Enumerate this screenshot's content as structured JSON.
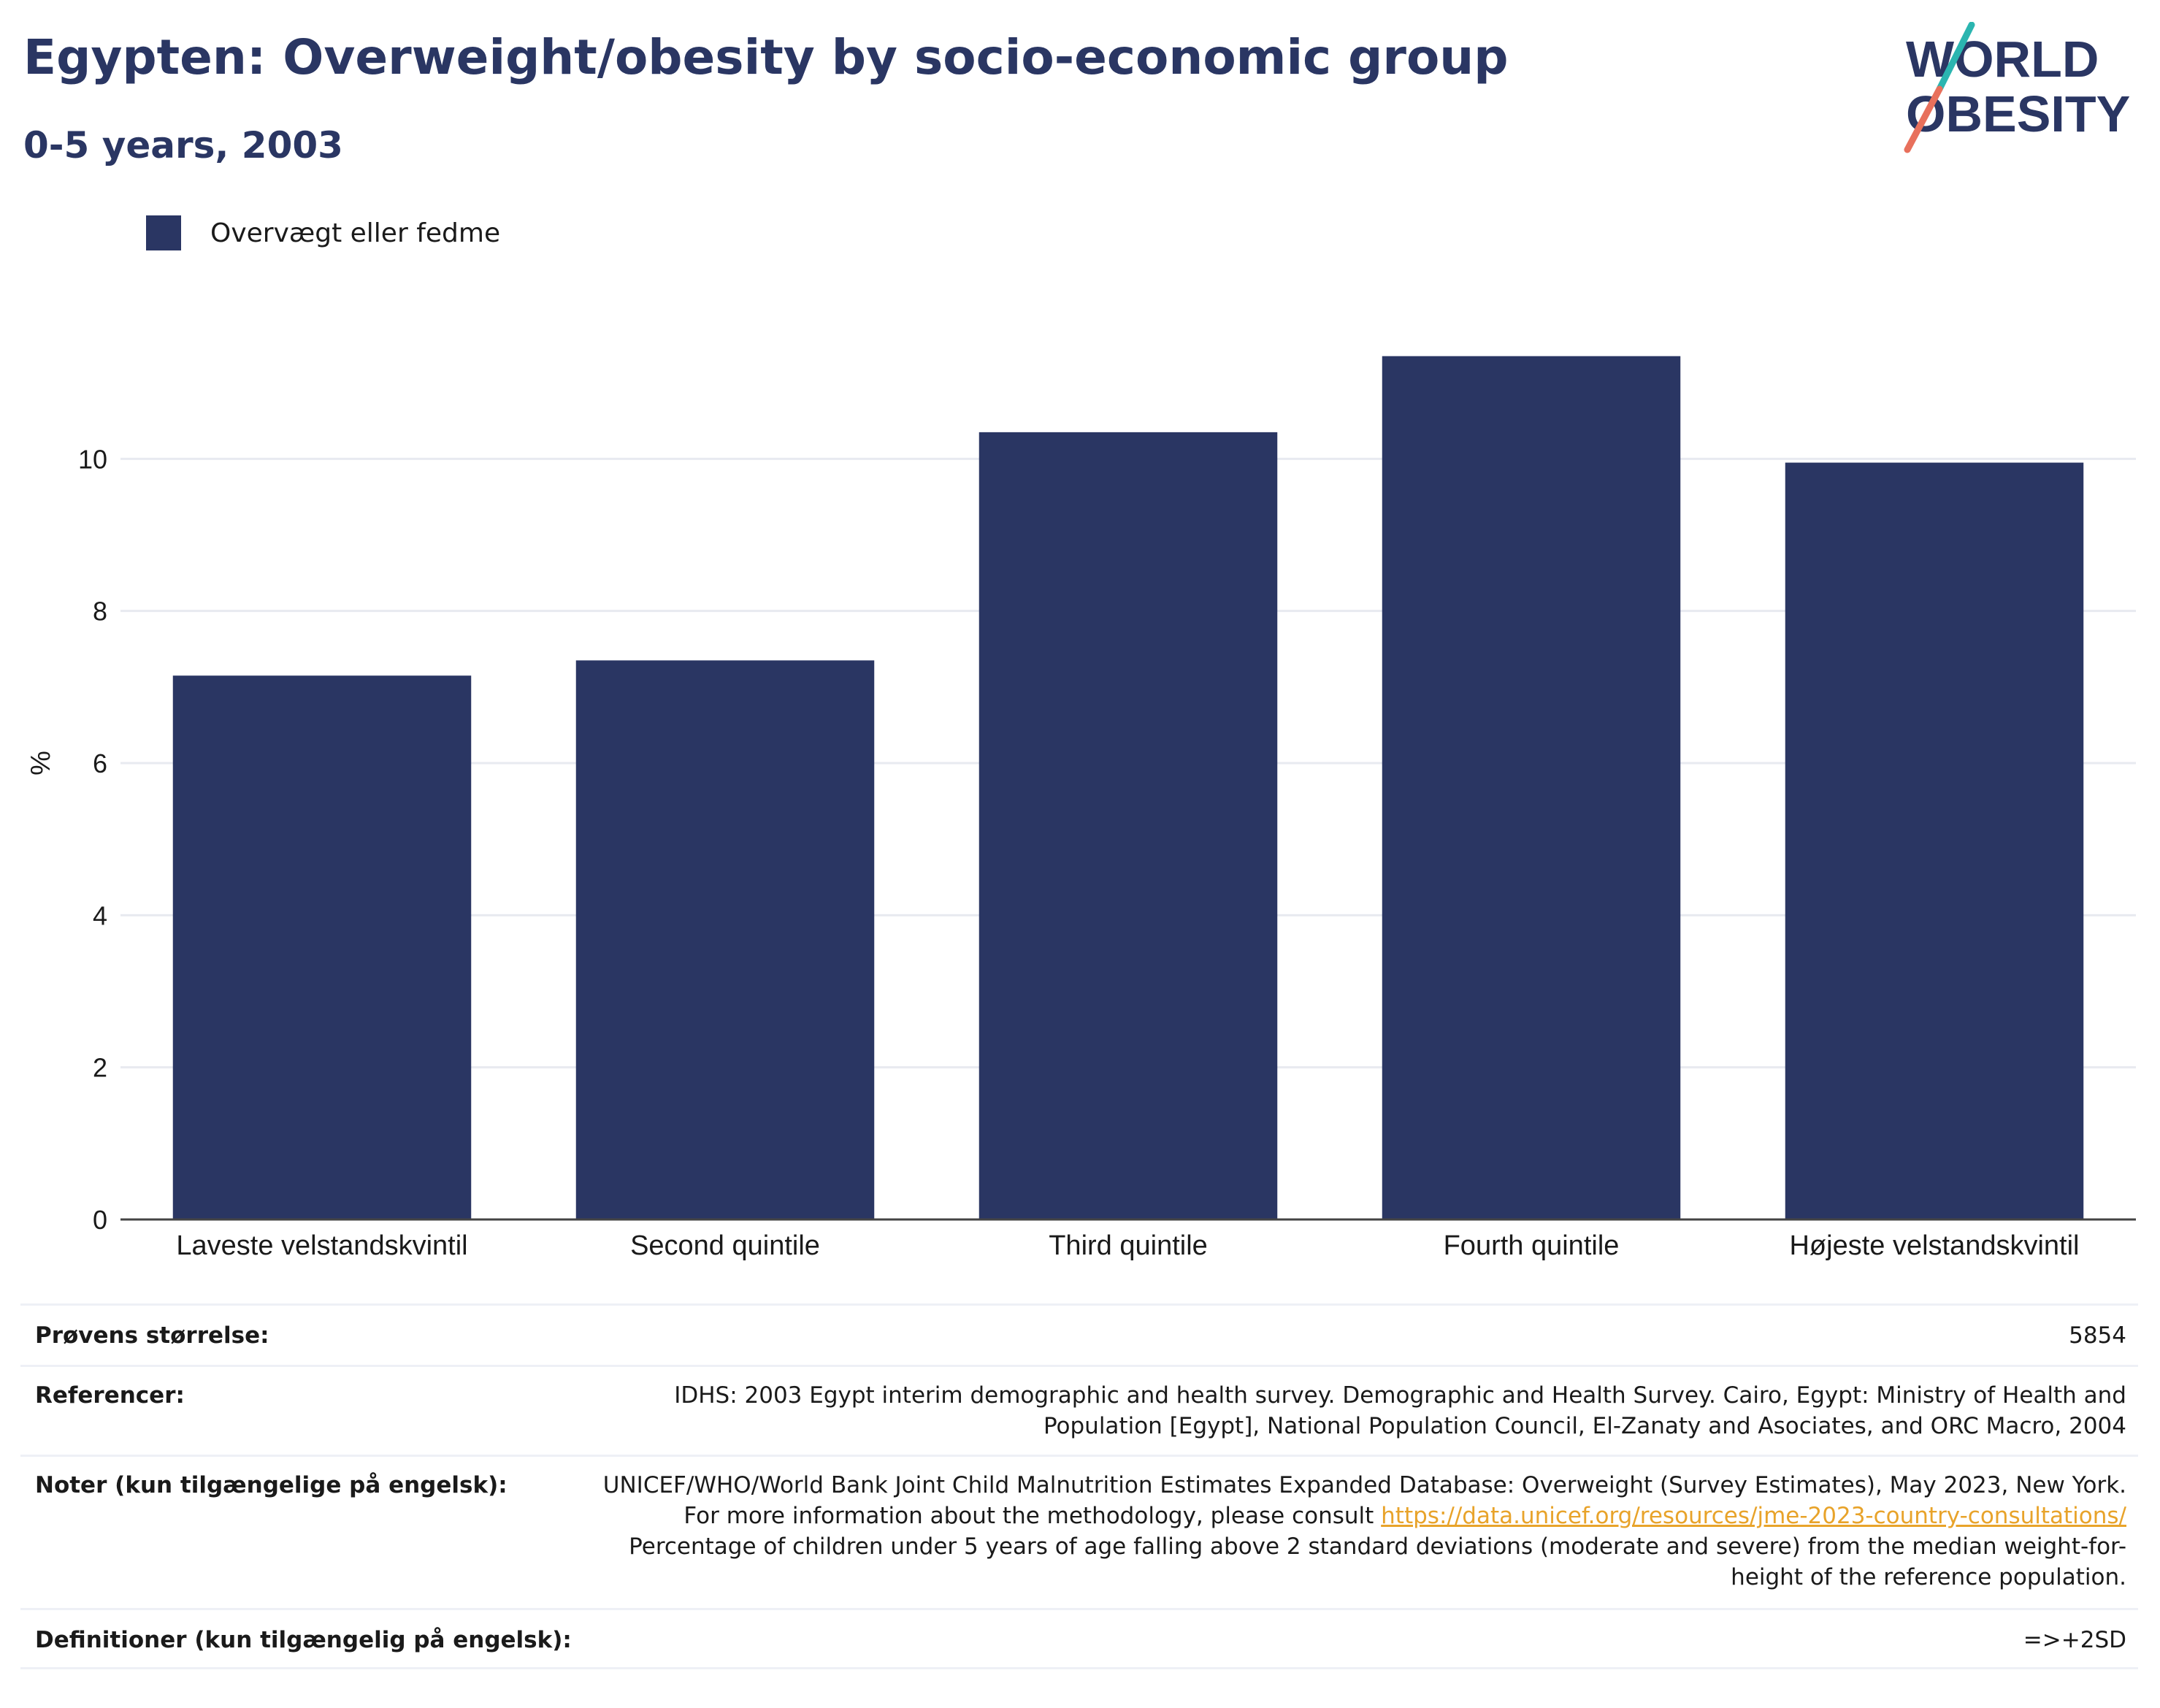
{
  "header": {
    "title": "Egypten: Overweight/obesity by socio-economic group",
    "subtitle": "0-5 years, 2003"
  },
  "logo": {
    "line1": "WORLD",
    "line2": "OBESITY",
    "colors": {
      "text": "#2a3663",
      "teal": "#2bb5b0",
      "coral": "#e8705c"
    }
  },
  "legend": {
    "label": "Overvægt eller fedme",
    "color": "#2a3663"
  },
  "chart_data": {
    "type": "bar",
    "categories": [
      "Laveste velstandskvintil",
      "Second quintile",
      "Third quintile",
      "Fourth quintile",
      "Højeste velstandskvintil"
    ],
    "series": [
      {
        "name": "Overvægt eller fedme",
        "values": [
          7.15,
          7.35,
          10.35,
          11.35,
          9.95
        ],
        "color": "#2a3663"
      }
    ],
    "ylabel": "%",
    "ylim": [
      0,
      12
    ],
    "yticks": [
      0,
      2,
      4,
      6,
      8,
      10
    ],
    "grid": true,
    "legend_position": "top-left"
  },
  "meta": {
    "rows": [
      {
        "label": "Prøvens størrelse:",
        "value": "5854"
      },
      {
        "label": "Referencer:",
        "value": "IDHS: 2003 Egypt interim demographic and health survey. Demographic and Health Survey. Cairo, Egypt: Ministry of Health and Population [Egypt], National Population Council, El-Zanaty and Asociates, and ORC Macro, 2004"
      },
      {
        "label": "Noter (kun tilgængelige på engelsk):",
        "value_before": "UNICEF/WHO/World Bank Joint Child Malnutrition Estimates Expanded Database: Overweight (Survey Estimates), May 2023, New York. For more information about the methodology, please consult ",
        "link": "https://data.unicef.org/resources/jme-2023-country-consultations/",
        "value_after": " Percentage of children under 5 years of age falling above 2 standard deviations (moderate and severe) from the median weight-for-height of the reference population."
      },
      {
        "label": "Definitioner (kun tilgængelig på engelsk):",
        "value": "=>+2SD"
      }
    ]
  }
}
